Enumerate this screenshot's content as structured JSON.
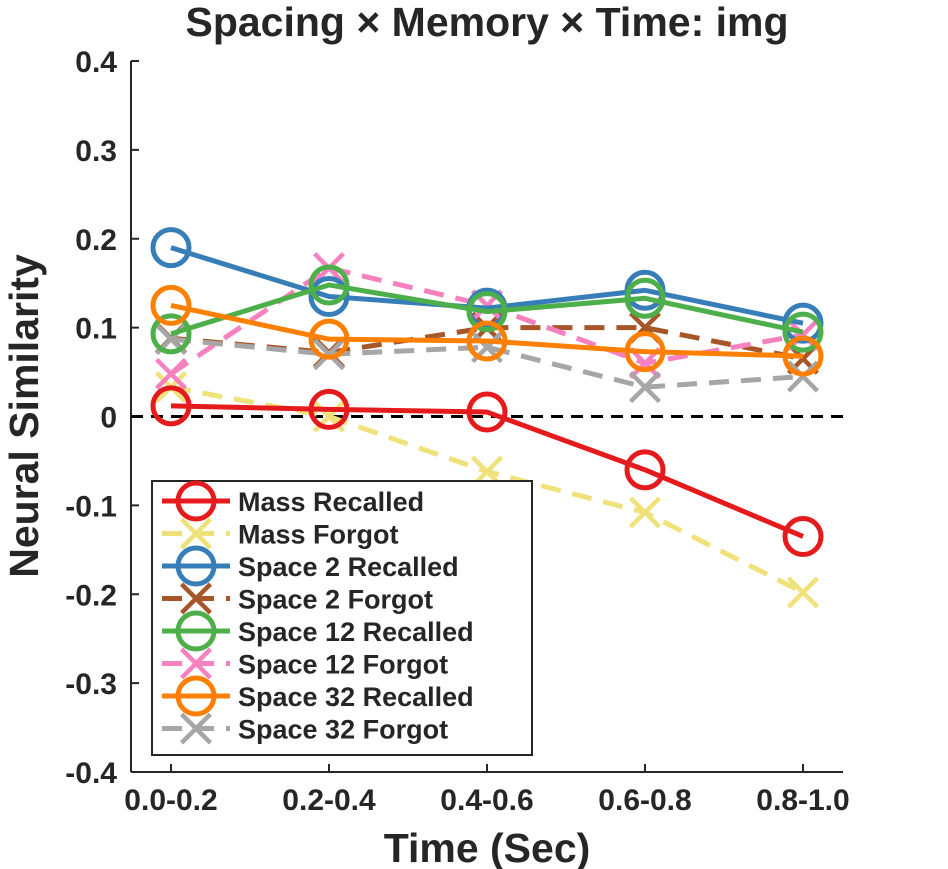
{
  "chart_data": {
    "type": "line",
    "title": "Spacing × Memory × Time: img",
    "xlabel": "Time (Sec)",
    "ylabel": "Neural Similarity",
    "categories": [
      "0.0-0.2",
      "0.2-0.4",
      "0.4-0.6",
      "0.6-0.8",
      "0.8-1.0"
    ],
    "ylim": [
      -0.4,
      0.4
    ],
    "yticks": [
      "-0.4",
      "-0.3",
      "-0.2",
      "-0.1",
      "0",
      "0.1",
      "0.2",
      "0.3",
      "0.4"
    ],
    "ytick_values": [
      -0.4,
      -0.3,
      -0.2,
      -0.1,
      0,
      0.1,
      0.2,
      0.3,
      0.4
    ],
    "zero_line": true,
    "legend_position": "bottom-left",
    "grid": false,
    "series": [
      {
        "name": "Mass Recalled",
        "values": [
          0.012,
          0.008,
          0.005,
          -0.06,
          -0.135
        ],
        "color": "#e41a1c",
        "marker": "circle",
        "dash": "solid"
      },
      {
        "name": "Mass Forgot",
        "values": [
          0.033,
          0.0,
          -0.062,
          -0.108,
          -0.198
        ],
        "color": "#f0e27a",
        "marker": "x",
        "dash": "dashed"
      },
      {
        "name": "Space 2 Recalled",
        "values": [
          0.19,
          0.135,
          0.122,
          0.142,
          0.105
        ],
        "color": "#377eb8",
        "marker": "circle",
        "dash": "solid"
      },
      {
        "name": "Space 2 Forgot",
        "values": [
          0.088,
          0.072,
          0.1,
          0.1,
          0.065
        ],
        "color": "#a65628",
        "marker": "x",
        "dash": "dashed"
      },
      {
        "name": "Space 12 Recalled",
        "values": [
          0.093,
          0.148,
          0.118,
          0.133,
          0.095
        ],
        "color": "#4daf4a",
        "marker": "circle",
        "dash": "solid"
      },
      {
        "name": "Space 12 Forgot",
        "values": [
          0.048,
          0.167,
          0.125,
          0.06,
          0.092
        ],
        "color": "#f781bf",
        "marker": "x",
        "dash": "dashed"
      },
      {
        "name": "Space 32 Recalled",
        "values": [
          0.125,
          0.087,
          0.085,
          0.073,
          0.068
        ],
        "color": "#ff7f00",
        "marker": "circle",
        "dash": "solid"
      },
      {
        "name": "Space 32 Forgot",
        "values": [
          0.087,
          0.07,
          0.078,
          0.033,
          0.045
        ],
        "color": "#a6a6a6",
        "marker": "x",
        "dash": "dashed"
      }
    ]
  }
}
